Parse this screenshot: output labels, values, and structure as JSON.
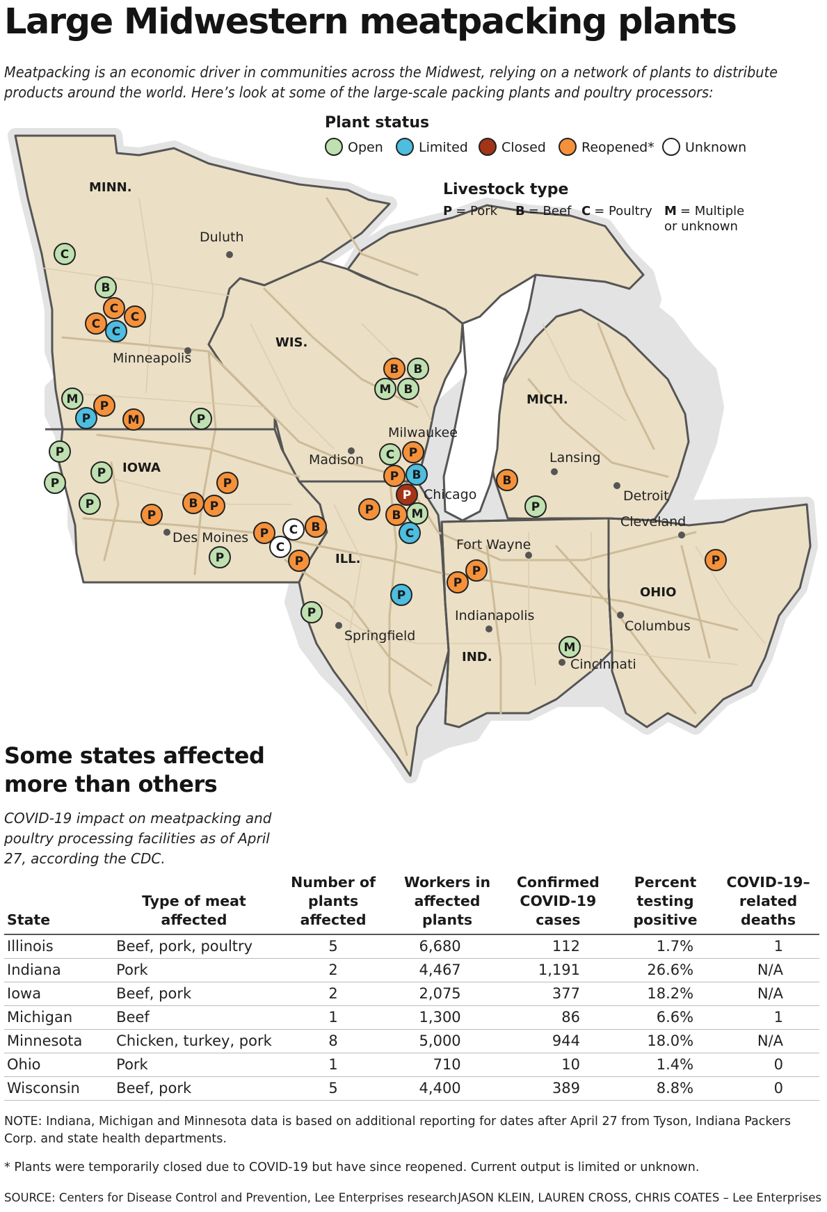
{
  "title": "Large Midwestern meatpacking plants",
  "intro": "Meatpacking is an economic driver in communities across the Midwest, relying on a network of plants to distribute products around the world. Here’s look at some of the large-scale packing plants and poultry processors:",
  "legend": {
    "status_title": "Plant status",
    "statuses": [
      {
        "key": "open",
        "label": "Open",
        "color": "#bfe0b0"
      },
      {
        "key": "limited",
        "label": "Limited",
        "color": "#4dbde0"
      },
      {
        "key": "closed",
        "label": "Closed",
        "color": "#a33418"
      },
      {
        "key": "reopened",
        "label": "Reopened*",
        "color": "#f5913a"
      },
      {
        "key": "unknown",
        "label": "Unknown",
        "color": "#ffffff"
      }
    ],
    "livestock_title": "Livestock type",
    "livestock": [
      {
        "letter": "P",
        "text": "= Pork"
      },
      {
        "letter": "B",
        "text": "= Beef"
      },
      {
        "letter": "C",
        "text": "= Poultry"
      },
      {
        "letter": "M",
        "text": "= Multiple",
        "text2": "or unknown"
      }
    ]
  },
  "states": [
    "MINN.",
    "WIS.",
    "MICH.",
    "IOWA",
    "ILL.",
    "IND.",
    "OHIO"
  ],
  "cities": [
    "Duluth",
    "Minneapolis",
    "Milwaukee",
    "Madison",
    "Lansing",
    "Chicago",
    "Detroit",
    "Cleveland",
    "Des Moines",
    "Fort Wayne",
    "Springfield",
    "Indianapolis",
    "Columbus",
    "Cincinnati"
  ],
  "plants": [
    {
      "letter": "C",
      "status": "open"
    },
    {
      "letter": "B",
      "status": "open"
    },
    {
      "letter": "C",
      "status": "reopened"
    },
    {
      "letter": "C",
      "status": "reopened"
    },
    {
      "letter": "C",
      "status": "limited"
    },
    {
      "letter": "C",
      "status": "reopened"
    },
    {
      "letter": "M",
      "status": "open"
    },
    {
      "letter": "P",
      "status": "reopened"
    },
    {
      "letter": "P",
      "status": "limited"
    },
    {
      "letter": "M",
      "status": "reopened"
    },
    {
      "letter": "P",
      "status": "open"
    },
    {
      "letter": "P",
      "status": "open"
    },
    {
      "letter": "P",
      "status": "open"
    },
    {
      "letter": "P",
      "status": "open"
    },
    {
      "letter": "P",
      "status": "open"
    },
    {
      "letter": "P",
      "status": "reopened"
    },
    {
      "letter": "P",
      "status": "reopened"
    },
    {
      "letter": "B",
      "status": "reopened"
    },
    {
      "letter": "P",
      "status": "reopened"
    },
    {
      "letter": "P",
      "status": "open"
    },
    {
      "letter": "P",
      "status": "reopened"
    },
    {
      "letter": "C",
      "status": "unknown"
    },
    {
      "letter": "B",
      "status": "reopened"
    },
    {
      "letter": "C",
      "status": "unknown"
    },
    {
      "letter": "P",
      "status": "reopened"
    },
    {
      "letter": "P",
      "status": "open"
    },
    {
      "letter": "B",
      "status": "reopened"
    },
    {
      "letter": "B",
      "status": "open"
    },
    {
      "letter": "M",
      "status": "open"
    },
    {
      "letter": "B",
      "status": "open"
    },
    {
      "letter": "C",
      "status": "open"
    },
    {
      "letter": "P",
      "status": "reopened"
    },
    {
      "letter": "P",
      "status": "reopened"
    },
    {
      "letter": "B",
      "status": "limited"
    },
    {
      "letter": "P",
      "status": "closed"
    },
    {
      "letter": "P",
      "status": "reopened"
    },
    {
      "letter": "B",
      "status": "reopened"
    },
    {
      "letter": "M",
      "status": "open"
    },
    {
      "letter": "C",
      "status": "limited"
    },
    {
      "letter": "P",
      "status": "limited"
    },
    {
      "letter": "B",
      "status": "reopened"
    },
    {
      "letter": "P",
      "status": "open"
    },
    {
      "letter": "P",
      "status": "reopened"
    },
    {
      "letter": "P",
      "status": "reopened"
    },
    {
      "letter": "M",
      "status": "open"
    },
    {
      "letter": "P",
      "status": "reopened"
    }
  ],
  "colors": {
    "land": "#ebdfc5",
    "border": "#555555",
    "roads": "#cdbb98",
    "halo": "#e3e3e3"
  },
  "sub_title": "Some states affected more than others",
  "sub_intro": "COVID-19 impact on meatpacking and poultry processing facilities as of April 27, according the CDC.",
  "table": {
    "headers": [
      "State",
      "Type of meat affected",
      "Number of plants affected",
      "Workers in affected plants",
      "Confirmed COVID-19 cases",
      "Percent testing positive",
      "COVID-19–related deaths"
    ],
    "rows": [
      [
        "Illinois",
        "Beef, pork, poultry",
        "5",
        "6,680",
        "112",
        "1.7%",
        "1"
      ],
      [
        "Indiana",
        "Pork",
        "2",
        "4,467",
        "1,191",
        "26.6%",
        "N/A"
      ],
      [
        "Iowa",
        "Beef, pork",
        "2",
        "2,075",
        "377",
        "18.2%",
        "N/A"
      ],
      [
        "Michigan",
        "Beef",
        "1",
        "1,300",
        "86",
        "6.6%",
        "1"
      ],
      [
        "Minnesota",
        "Chicken, turkey, pork",
        "8",
        "5,000",
        "944",
        "18.0%",
        "N/A"
      ],
      [
        "Ohio",
        "Pork",
        "1",
        "710",
        "10",
        "1.4%",
        "0"
      ],
      [
        "Wisconsin",
        "Beef, pork",
        "5",
        "4,400",
        "389",
        "8.8%",
        "0"
      ]
    ]
  },
  "note": "NOTE: Indiana, Michigan and Minnesota data is based on additional reporting for dates after April 27 from Tyson, Indiana Packers Corp. and state health departments.",
  "footnote": "* Plants were temporarily closed due to COVID-19 but have since reopened. Current output is limited or unknown.",
  "source": "SOURCE: Centers for Disease Control and Prevention, Lee Enterprises research",
  "credit": "JASON KLEIN, LAUREN CROSS, CHRIS COATES – Lee Enterprises"
}
